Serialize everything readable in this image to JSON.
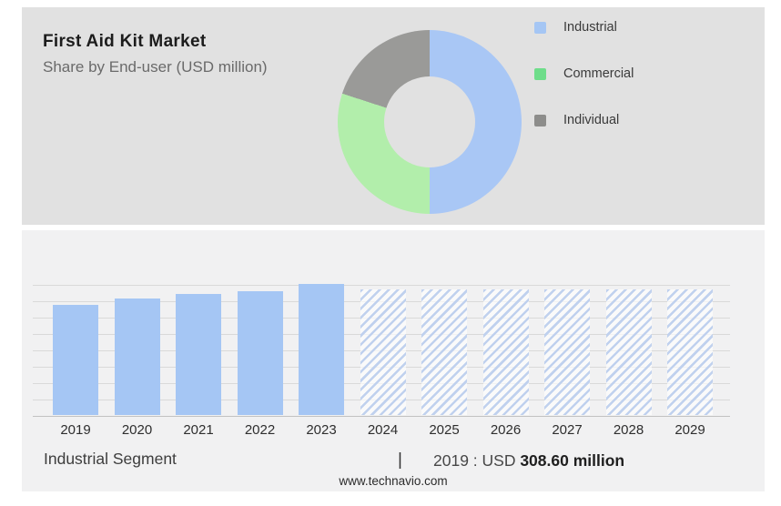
{
  "header": {
    "title": "First Aid Kit Market",
    "subtitle": "Share by End-user (USD million)"
  },
  "legend": {
    "items": [
      {
        "label": "Industrial",
        "color": "#a5c6f4"
      },
      {
        "label": "Commercial",
        "color": "#6edd8a"
      },
      {
        "label": "Individual",
        "color": "#8d8d8b"
      }
    ]
  },
  "footer": {
    "segment_label": "Industrial Segment",
    "separator": "|",
    "value_prefix": "2019 : USD ",
    "value_bold": "308.60 million",
    "website": "www.technavio.com"
  },
  "chart_data": [
    {
      "type": "pie",
      "donut": true,
      "title": "Share by End-user (USD million)",
      "labels": [
        "Industrial",
        "Commercial",
        "Individual"
      ],
      "values_pct": [
        50,
        30,
        20
      ],
      "colors": [
        "#a9c7f5",
        "#b2eeab",
        "#9a9a98"
      ],
      "legend_position": "right",
      "start_angle_deg": 0,
      "direction": "clockwise"
    },
    {
      "type": "bar",
      "categories": [
        "2019",
        "2020",
        "2021",
        "2022",
        "2023",
        "2024",
        "2025",
        "2026",
        "2027",
        "2028",
        "2029"
      ],
      "series": [
        {
          "name": "Industrial segment (USD million)",
          "values": [
            308.6,
            325,
            338,
            347,
            367,
            360,
            360,
            360,
            360,
            360,
            360
          ]
        }
      ],
      "value_labels_shown": [
        "2019 : USD 308.60 million"
      ],
      "forecast_start_index": 5,
      "ylim": [
        0,
        367
      ],
      "gridlines": 9,
      "grid": "horizontal",
      "xlabel": "",
      "ylabel": "",
      "bar_color_actual": "#a5c6f4",
      "bar_style_forecast": "diagonal-hatch"
    }
  ]
}
